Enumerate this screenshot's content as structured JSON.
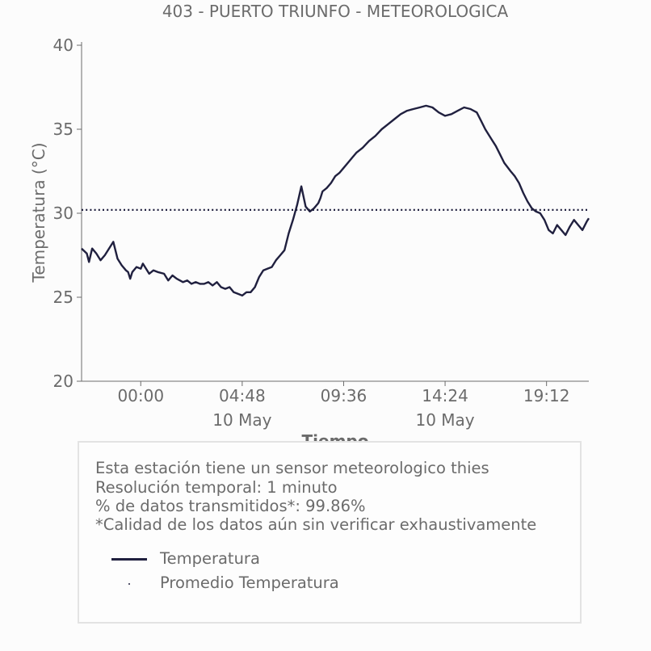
{
  "chart_data": {
    "type": "line",
    "title": "403 - PUERTO TRIUNFO - METEOROLOGICA",
    "xlabel": "Tiempo",
    "ylabel": "Temperatura (°C)",
    "ylim": [
      20,
      40
    ],
    "yticks": [
      "20",
      "25",
      "30",
      "35",
      "40"
    ],
    "xlim_hours": [
      -2.8,
      21.2
    ],
    "xticks": [
      {
        "hour": 0.0,
        "label": "00:00",
        "sublabel": ""
      },
      {
        "hour": 4.8,
        "label": "04:48",
        "sublabel": "10 May"
      },
      {
        "hour": 9.6,
        "label": "09:36",
        "sublabel": ""
      },
      {
        "hour": 14.4,
        "label": "14:24",
        "sublabel": "10 May"
      },
      {
        "hour": 19.2,
        "label": "19:12",
        "sublabel": ""
      }
    ],
    "grid": false,
    "series": [
      {
        "name": "Temperatura",
        "color": "#20203f",
        "x_hours": [
          -2.8,
          -2.55,
          -2.45,
          -2.3,
          -2.1,
          -1.9,
          -1.7,
          -1.5,
          -1.3,
          -1.1,
          -0.9,
          -0.7,
          -0.6,
          -0.5,
          -0.4,
          -0.2,
          0.0,
          0.1,
          0.4,
          0.6,
          0.8,
          1.1,
          1.3,
          1.5,
          1.7,
          2.0,
          2.2,
          2.4,
          2.6,
          2.8,
          3.0,
          3.2,
          3.4,
          3.6,
          3.8,
          4.0,
          4.2,
          4.4,
          4.6,
          4.8,
          5.0,
          5.2,
          5.4,
          5.6,
          5.8,
          6.0,
          6.2,
          6.4,
          6.6,
          6.8,
          7.0,
          7.2,
          7.4,
          7.6,
          7.8,
          8.0,
          8.2,
          8.4,
          8.5,
          8.6,
          8.8,
          9.0,
          9.2,
          9.4,
          9.6,
          9.8,
          10.0,
          10.2,
          10.5,
          10.8,
          11.1,
          11.4,
          11.7,
          12.0,
          12.3,
          12.6,
          12.9,
          13.2,
          13.5,
          13.8,
          14.1,
          14.4,
          14.7,
          15.0,
          15.3,
          15.6,
          15.9,
          16.1,
          16.3,
          16.6,
          16.8,
          17.0,
          17.2,
          17.5,
          17.7,
          17.9,
          18.1,
          18.3,
          18.5,
          18.7,
          18.9,
          19.1,
          19.3,
          19.5,
          19.7,
          19.9,
          20.1,
          20.3,
          20.5,
          20.7,
          20.9,
          21.1,
          21.2
        ],
        "values": [
          27.9,
          27.6,
          27.1,
          27.9,
          27.6,
          27.2,
          27.5,
          27.9,
          28.3,
          27.3,
          26.9,
          26.6,
          26.5,
          26.1,
          26.5,
          26.8,
          26.7,
          27.0,
          26.4,
          26.6,
          26.5,
          26.4,
          26.0,
          26.3,
          26.1,
          25.9,
          26.0,
          25.8,
          25.9,
          25.8,
          25.8,
          25.9,
          25.7,
          25.9,
          25.6,
          25.5,
          25.6,
          25.3,
          25.2,
          25.1,
          25.3,
          25.3,
          25.6,
          26.2,
          26.6,
          26.7,
          26.8,
          27.2,
          27.5,
          27.8,
          28.8,
          29.6,
          30.5,
          31.6,
          30.4,
          30.1,
          30.3,
          30.6,
          30.9,
          31.3,
          31.5,
          31.8,
          32.2,
          32.4,
          32.7,
          33.0,
          33.3,
          33.6,
          33.9,
          34.3,
          34.6,
          35.0,
          35.3,
          35.6,
          35.9,
          36.1,
          36.2,
          36.3,
          36.4,
          36.3,
          36.0,
          35.8,
          35.9,
          36.1,
          36.3,
          36.2,
          36.0,
          35.5,
          35.0,
          34.4,
          34.0,
          33.5,
          33.0,
          32.5,
          32.2,
          31.8,
          31.2,
          30.7,
          30.3,
          30.1,
          30.0,
          29.6,
          29.0,
          28.8,
          29.3,
          29.0,
          28.7,
          29.2,
          29.6,
          29.3,
          29.0,
          29.5,
          29.7
        ]
      },
      {
        "name": "Promedio Temperatura",
        "color": "#20203f",
        "style": "dotted",
        "value": 30.2
      }
    ]
  },
  "info": {
    "line1": "Esta estación tiene un sensor meteorologico thies",
    "line2": "Resolución temporal: 1 minuto",
    "line3": "% de datos transmitidos*: 99.86%",
    "line4": "*Calidad de los datos aún sin verificar exhaustivamente"
  },
  "legend": {
    "series1": "Temperatura",
    "series2": "Promedio Temperatura"
  },
  "colors": {
    "line": "#20203f",
    "text": "#6b6b6b",
    "box_border": "#e3e3e3"
  }
}
